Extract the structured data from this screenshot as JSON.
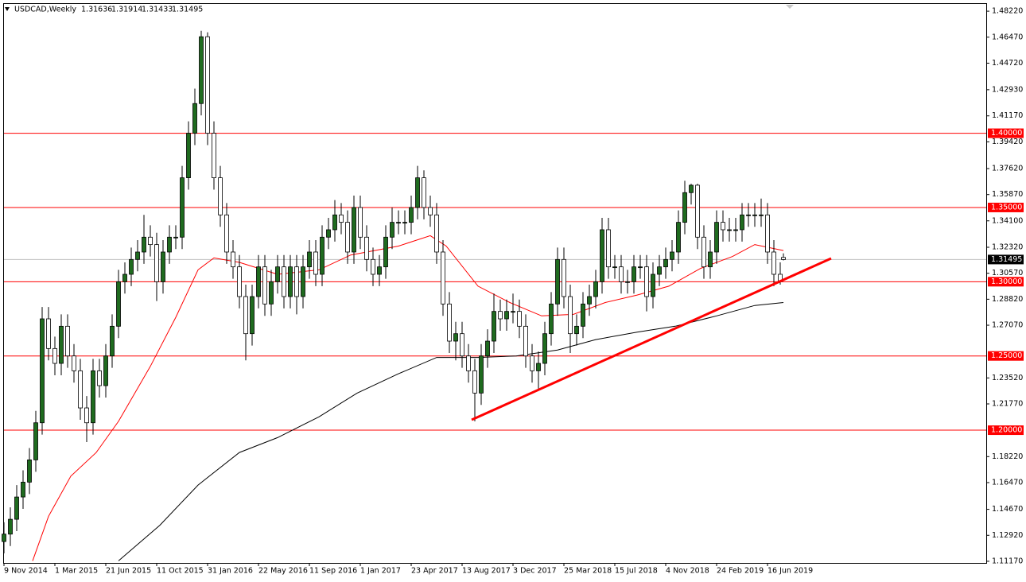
{
  "chart_data": {
    "type": "candlestick",
    "title": "USDCAD,Weekly",
    "x": [
      0,
      2,
      4,
      6,
      8,
      10,
      12,
      14,
      16,
      18,
      20,
      22,
      24,
      26,
      28,
      30,
      32,
      34,
      36,
      38,
      40,
      42,
      44,
      46,
      48,
      50,
      52,
      54,
      56,
      58,
      60,
      62,
      64,
      66,
      68,
      70,
      72,
      74,
      76,
      78,
      80,
      82,
      84,
      86,
      88,
      90,
      92,
      94,
      96,
      98,
      100,
      102,
      104,
      106,
      108,
      110,
      112,
      114,
      116,
      118,
      120,
      122,
      124,
      126,
      128,
      130,
      132,
      134,
      136,
      138,
      140,
      142,
      144,
      146,
      148,
      150,
      152,
      154,
      156,
      158,
      160,
      162,
      164,
      166,
      168,
      170,
      172,
      174,
      176,
      178,
      180,
      182,
      184,
      186,
      188,
      190,
      192,
      194,
      196,
      198,
      200,
      202,
      204,
      206,
      208,
      210,
      212,
      214,
      216,
      218,
      220,
      222,
      224,
      226,
      228,
      230,
      232,
      234,
      236,
      238,
      240,
      242,
      244,
      245
    ],
    "open": [
      1.125,
      1.13,
      1.14,
      1.155,
      1.165,
      1.18,
      1.205,
      1.275,
      1.255,
      1.245,
      1.27,
      1.25,
      1.24,
      1.215,
      1.205,
      1.24,
      1.23,
      1.25,
      1.27,
      1.3,
      1.305,
      1.315,
      1.32,
      1.33,
      1.325,
      1.3,
      1.32,
      1.33,
      1.33,
      1.37,
      1.4,
      1.42,
      1.465,
      1.4,
      1.37,
      1.345,
      1.32,
      1.31,
      1.29,
      1.265,
      1.29,
      1.31,
      1.285,
      1.3,
      1.31,
      1.29,
      1.31,
      1.29,
      1.31,
      1.32,
      1.305,
      1.33,
      1.335,
      1.345,
      1.34,
      1.32,
      1.35,
      1.33,
      1.315,
      1.305,
      1.31,
      1.33,
      1.34,
      1.34,
      1.34,
      1.35,
      1.37,
      1.35,
      1.345,
      1.32,
      1.285,
      1.26,
      1.265,
      1.25,
      1.24,
      1.225,
      1.25,
      1.26,
      1.28,
      1.275,
      1.28,
      1.28,
      1.27,
      1.25,
      1.24,
      1.245,
      1.265,
      1.285,
      1.315,
      1.29,
      1.265,
      1.27,
      1.285,
      1.29,
      1.3,
      1.335,
      1.31,
      1.31,
      1.3,
      1.3,
      1.31,
      1.31,
      1.29,
      1.305,
      1.31,
      1.315,
      1.32,
      1.34,
      1.36,
      1.365,
      1.33,
      1.31,
      1.32,
      1.34,
      1.335,
      1.335,
      1.335,
      1.345,
      1.345,
      1.345,
      1.345,
      1.32,
      1.305,
      1.31636
    ],
    "high": [
      1.138,
      1.148,
      1.163,
      1.173,
      1.188,
      1.213,
      1.283,
      1.283,
      1.263,
      1.278,
      1.278,
      1.258,
      1.248,
      1.223,
      1.248,
      1.248,
      1.258,
      1.278,
      1.308,
      1.313,
      1.323,
      1.328,
      1.345,
      1.338,
      1.333,
      1.328,
      1.338,
      1.338,
      1.378,
      1.408,
      1.43,
      1.469,
      1.468,
      1.408,
      1.378,
      1.353,
      1.328,
      1.318,
      1.298,
      1.298,
      1.318,
      1.318,
      1.308,
      1.318,
      1.318,
      1.318,
      1.318,
      1.318,
      1.328,
      1.328,
      1.338,
      1.343,
      1.355,
      1.353,
      1.348,
      1.358,
      1.358,
      1.338,
      1.323,
      1.318,
      1.338,
      1.35,
      1.348,
      1.348,
      1.358,
      1.378,
      1.375,
      1.358,
      1.353,
      1.328,
      1.293,
      1.273,
      1.273,
      1.258,
      1.248,
      1.258,
      1.268,
      1.292,
      1.288,
      1.288,
      1.292,
      1.288,
      1.278,
      1.258,
      1.253,
      1.273,
      1.293,
      1.323,
      1.323,
      1.298,
      1.278,
      1.293,
      1.298,
      1.308,
      1.343,
      1.343,
      1.318,
      1.318,
      1.308,
      1.318,
      1.318,
      1.318,
      1.313,
      1.318,
      1.323,
      1.328,
      1.348,
      1.368,
      1.366,
      1.366,
      1.338,
      1.328,
      1.348,
      1.348,
      1.343,
      1.343,
      1.353,
      1.353,
      1.353,
      1.356,
      1.353,
      1.328,
      1.313,
      1.31914
    ],
    "low": [
      1.117,
      1.122,
      1.132,
      1.147,
      1.157,
      1.172,
      1.197,
      1.247,
      1.237,
      1.237,
      1.242,
      1.232,
      1.207,
      1.192,
      1.197,
      1.222,
      1.222,
      1.242,
      1.262,
      1.292,
      1.297,
      1.307,
      1.312,
      1.317,
      1.287,
      1.292,
      1.312,
      1.322,
      1.322,
      1.362,
      1.392,
      1.412,
      1.392,
      1.362,
      1.337,
      1.312,
      1.302,
      1.282,
      1.247,
      1.257,
      1.282,
      1.277,
      1.277,
      1.292,
      1.282,
      1.282,
      1.278,
      1.282,
      1.302,
      1.297,
      1.297,
      1.322,
      1.327,
      1.332,
      1.312,
      1.312,
      1.322,
      1.307,
      1.297,
      1.297,
      1.302,
      1.322,
      1.332,
      1.332,
      1.332,
      1.342,
      1.342,
      1.337,
      1.312,
      1.277,
      1.252,
      1.247,
      1.242,
      1.232,
      1.206,
      1.217,
      1.242,
      1.252,
      1.267,
      1.267,
      1.272,
      1.262,
      1.242,
      1.232,
      1.228,
      1.237,
      1.257,
      1.277,
      1.282,
      1.252,
      1.257,
      1.262,
      1.277,
      1.282,
      1.292,
      1.302,
      1.302,
      1.292,
      1.292,
      1.292,
      1.302,
      1.28,
      1.282,
      1.297,
      1.302,
      1.307,
      1.312,
      1.332,
      1.352,
      1.322,
      1.302,
      1.302,
      1.312,
      1.327,
      1.327,
      1.327,
      1.327,
      1.337,
      1.337,
      1.337,
      1.312,
      1.297,
      1.298,
      1.31433
    ],
    "close": [
      1.13,
      1.14,
      1.155,
      1.165,
      1.18,
      1.205,
      1.275,
      1.255,
      1.245,
      1.27,
      1.25,
      1.24,
      1.215,
      1.205,
      1.24,
      1.23,
      1.25,
      1.27,
      1.3,
      1.305,
      1.315,
      1.32,
      1.33,
      1.325,
      1.3,
      1.32,
      1.33,
      1.33,
      1.37,
      1.4,
      1.42,
      1.465,
      1.4,
      1.37,
      1.345,
      1.32,
      1.31,
      1.29,
      1.265,
      1.29,
      1.31,
      1.285,
      1.3,
      1.31,
      1.29,
      1.31,
      1.29,
      1.31,
      1.32,
      1.305,
      1.33,
      1.335,
      1.345,
      1.34,
      1.32,
      1.35,
      1.33,
      1.315,
      1.305,
      1.31,
      1.33,
      1.34,
      1.34,
      1.34,
      1.35,
      1.37,
      1.35,
      1.345,
      1.32,
      1.285,
      1.26,
      1.265,
      1.25,
      1.24,
      1.225,
      1.25,
      1.26,
      1.28,
      1.275,
      1.28,
      1.28,
      1.27,
      1.25,
      1.24,
      1.245,
      1.265,
      1.285,
      1.315,
      1.29,
      1.265,
      1.27,
      1.285,
      1.29,
      1.3,
      1.335,
      1.31,
      1.31,
      1.3,
      1.3,
      1.31,
      1.31,
      1.29,
      1.305,
      1.31,
      1.315,
      1.32,
      1.34,
      1.36,
      1.365,
      1.33,
      1.31,
      1.32,
      1.34,
      1.335,
      1.335,
      1.335,
      1.345,
      1.345,
      1.345,
      1.345,
      1.32,
      1.305,
      1.3,
      1.31495
    ],
    "up_color": "#1f6b1f",
    "down_color": "#ffffff",
    "outline_color": "#000000",
    "moving_averages": [
      {
        "color": "#ff0000",
        "x": [
          9,
          14,
          21,
          29,
          36,
          46,
          54,
          61,
          66,
          74,
          86,
          99,
          109,
          124,
          134,
          139,
          149,
          159,
          169,
          179,
          189,
          199,
          209,
          219,
          229,
          236,
          245
        ],
        "values": [
          1.112,
          1.142,
          1.169,
          1.185,
          1.206,
          1.243,
          1.276,
          1.308,
          1.316,
          1.313,
          1.305,
          1.308,
          1.318,
          1.324,
          1.331,
          1.324,
          1.297,
          1.286,
          1.277,
          1.278,
          1.286,
          1.291,
          1.297,
          1.309,
          1.317,
          1.325,
          1.321
        ]
      },
      {
        "color": "#000000",
        "x": [
          36,
          49,
          61,
          74,
          86,
          99,
          111,
          124,
          136,
          149,
          161,
          174,
          186,
          199,
          211,
          224,
          236,
          245
        ],
        "values": [
          1.112,
          1.136,
          1.163,
          1.185,
          1.195,
          1.209,
          1.225,
          1.238,
          1.249,
          1.249,
          1.25,
          1.254,
          1.261,
          1.266,
          1.27,
          1.277,
          1.284,
          1.286
        ]
      }
    ],
    "trendline": {
      "color": "#ff0000",
      "x": [
        147,
        260
      ],
      "values": [
        1.207,
        1.3157
      ]
    },
    "levels": [
      {
        "value": 1.4,
        "label": "1.40000"
      },
      {
        "value": 1.35,
        "label": "1.35000"
      },
      {
        "value": 1.3,
        "label": "1.30000"
      },
      {
        "value": 1.25,
        "label": "1.25000"
      },
      {
        "value": 1.2,
        "label": "1.20000"
      }
    ],
    "level_color": "#ff0000",
    "xlim": [
      -1,
      309
    ],
    "ylim": [
      1.1106,
      1.4876
    ],
    "xticks": [
      {
        "value": 0,
        "label": "9 Nov 2014"
      },
      {
        "value": 16,
        "label": "1 Mar 2015"
      },
      {
        "value": 32,
        "label": "21 Jun 2015"
      },
      {
        "value": 48,
        "label": "11 Oct 2015"
      },
      {
        "value": 64,
        "label": "31 Jan 2016"
      },
      {
        "value": 80,
        "label": "22 May 2016"
      },
      {
        "value": 96,
        "label": "11 Sep 2016"
      },
      {
        "value": 112,
        "label": "1 Jan 2017"
      },
      {
        "value": 128,
        "label": "23 Apr 2017"
      },
      {
        "value": 144,
        "label": "13 Aug 2017"
      },
      {
        "value": 160,
        "label": "3 Dec 2017"
      },
      {
        "value": 176,
        "label": "25 Mar 2018"
      },
      {
        "value": 192,
        "label": "15 Jul 2018"
      },
      {
        "value": 208,
        "label": "4 Nov 2018"
      },
      {
        "value": 224,
        "label": "24 Feb 2019"
      },
      {
        "value": 240,
        "label": "16 Jun 2019"
      }
    ],
    "yticks": [
      {
        "value": 1.4822,
        "label": "1.48220"
      },
      {
        "value": 1.4647,
        "label": "1.46470"
      },
      {
        "value": 1.4472,
        "label": "1.44720"
      },
      {
        "value": 1.4293,
        "label": "1.42930"
      },
      {
        "value": 1.4117,
        "label": "1.41170"
      },
      {
        "value": 1.3942,
        "label": "1.39420"
      },
      {
        "value": 1.3762,
        "label": "1.37620"
      },
      {
        "value": 1.3587,
        "label": "1.35870"
      },
      {
        "value": 1.341,
        "label": "1.34100"
      },
      {
        "value": 1.3232,
        "label": "1.32320"
      },
      {
        "value": 1.3057,
        "label": "1.30570"
      },
      {
        "value": 1.2882,
        "label": "1.28820"
      },
      {
        "value": 1.2707,
        "label": "1.27070"
      },
      {
        "value": 1.2352,
        "label": "1.23520"
      },
      {
        "value": 1.2177,
        "label": "1.21770"
      },
      {
        "value": 1.1822,
        "label": "1.18220"
      },
      {
        "value": 1.1647,
        "label": "1.16470"
      },
      {
        "value": 1.1467,
        "label": "1.14670"
      },
      {
        "value": 1.1292,
        "label": "1.12920"
      },
      {
        "value": 1.1117,
        "label": "1.11170"
      }
    ]
  }
}
